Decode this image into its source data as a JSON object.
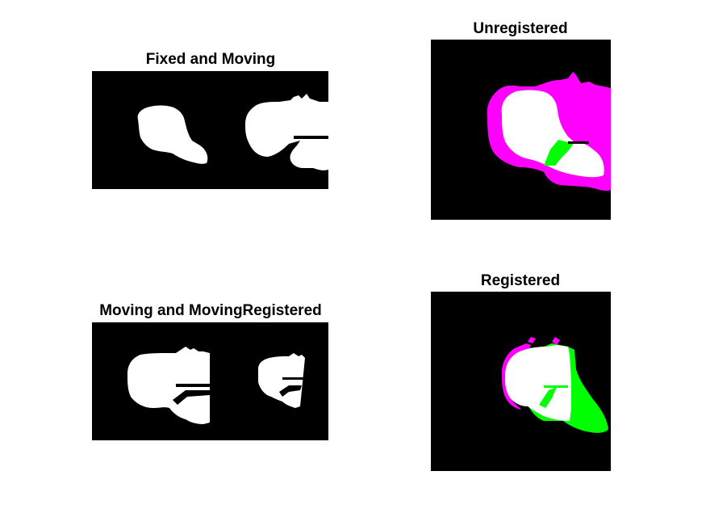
{
  "figure": {
    "panels": [
      {
        "id": "fixed-moving",
        "title": "Fixed and Moving"
      },
      {
        "id": "unregistered",
        "title": "Unregistered"
      },
      {
        "id": "moving-registered",
        "title": "Moving and MovingRegistered"
      },
      {
        "id": "registered",
        "title": "Registered"
      }
    ]
  },
  "colors": {
    "background": "#ffffff",
    "image_background": "#000000",
    "foreground": "#ffffff",
    "magenta": "#ff00ff",
    "green": "#00ff00"
  }
}
